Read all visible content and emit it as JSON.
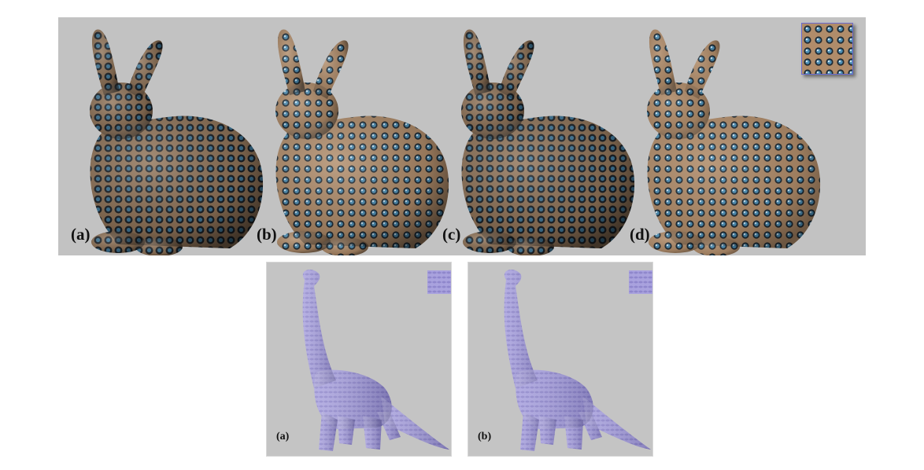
{
  "top_panel": {
    "labels": [
      "(a)",
      "(b)",
      "(c)",
      "(d)"
    ],
    "bunny_shades": [
      "#5a4f48",
      "#8d7c6a",
      "#70645a",
      "#9f8e7c"
    ],
    "spot_color": "#3d6f8c",
    "background": "#c2c2c2"
  },
  "bottom_panels": {
    "labels": [
      "(a)",
      "(b)"
    ],
    "dino_color": "#a7a0dc",
    "background": "#c4c4c4"
  }
}
